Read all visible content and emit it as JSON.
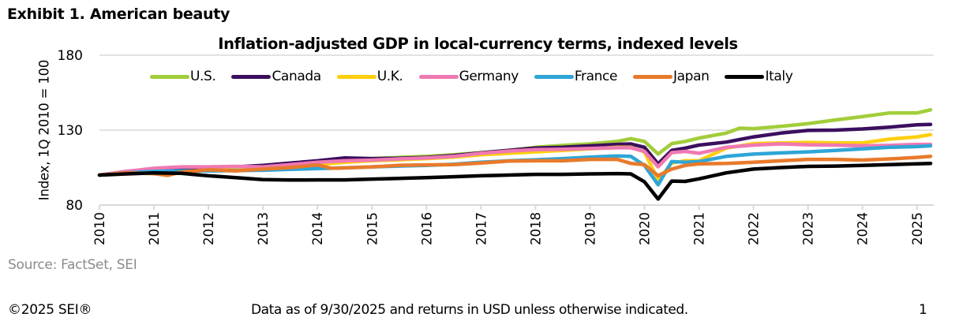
{
  "page": {
    "exhibit_title": "Exhibit 1. American beauty",
    "source": "Source: FactSet, SEI",
    "footer_copyright": "©2025 SEI®",
    "footer_note": "Data as of 9/30/2025 and returns in USD unless otherwise indicated.",
    "page_number": "1"
  },
  "chart_data": {
    "type": "line",
    "title": "Inflation-adjusted GDP in local-currency terms, indexed levels",
    "xlabel": "",
    "ylabel": "Index, 1Q 2010 = 100",
    "ylim": [
      80,
      180
    ],
    "yticks": [
      80,
      130,
      180
    ],
    "xlim": [
      2010,
      2025.4
    ],
    "xticks": [
      "2010",
      "2011",
      "2012",
      "2013",
      "2014",
      "2015",
      "2016",
      "2017",
      "2018",
      "2019",
      "2020",
      "2021",
      "2022",
      "2023",
      "2024",
      "2025"
    ],
    "grid": true,
    "legend_position": "top",
    "series": [
      {
        "name": "U.S.",
        "color": "#a2cd3a",
        "x": [
          2010,
          2010.5,
          2011,
          2011.5,
          2012,
          2012.5,
          2013,
          2013.5,
          2014,
          2014.5,
          2015,
          2015.5,
          2016,
          2016.5,
          2017,
          2017.5,
          2018,
          2018.5,
          2019,
          2019.5,
          2019.75,
          2020,
          2020.25,
          2020.5,
          2020.75,
          2021,
          2021.5,
          2021.75,
          2022,
          2022.5,
          2023,
          2023.5,
          2024,
          2024.5,
          2025,
          2025.25
        ],
        "values": [
          100,
          101.8,
          102.3,
          103.2,
          104.3,
          105.0,
          105.8,
          107.0,
          108.5,
          110.0,
          111.0,
          111.8,
          112.5,
          113.5,
          115.0,
          116.5,
          118.5,
          119.8,
          120.8,
          122.5,
          124.3,
          122.5,
          114.0,
          121.0,
          122.5,
          124.7,
          128.0,
          131.3,
          131.0,
          132.5,
          134.3,
          136.8,
          139.0,
          141.5,
          141.5,
          143.5
        ]
      },
      {
        "name": "Canada",
        "color": "#3b0f5e",
        "x": [
          2010,
          2010.5,
          2011,
          2011.5,
          2012,
          2012.5,
          2013,
          2013.5,
          2014,
          2014.5,
          2015,
          2015.5,
          2016,
          2016.5,
          2017,
          2017.5,
          2018,
          2018.5,
          2019,
          2019.5,
          2019.75,
          2020,
          2020.25,
          2020.5,
          2020.75,
          2021,
          2021.5,
          2022,
          2022.5,
          2023,
          2023.5,
          2024,
          2024.5,
          2025,
          2025.25
        ],
        "values": [
          100,
          102.5,
          103.2,
          104.0,
          104.8,
          105.5,
          106.5,
          108.0,
          109.5,
          111.5,
          111.0,
          111.2,
          111.8,
          113.0,
          114.8,
          116.5,
          118.0,
          118.5,
          119.5,
          120.5,
          120.8,
          118.5,
          107.5,
          116.5,
          118.0,
          120.0,
          122.0,
          125.5,
          128.0,
          129.8,
          130.0,
          130.8,
          132.0,
          133.5,
          133.8
        ]
      },
      {
        "name": "U.K.",
        "color": "#fdcf0d",
        "x": [
          2010,
          2010.5,
          2011,
          2011.5,
          2012,
          2012.5,
          2013,
          2013.5,
          2014,
          2014.5,
          2015,
          2015.5,
          2016,
          2016.5,
          2017,
          2017.5,
          2018,
          2018.5,
          2019,
          2019.5,
          2019.75,
          2020,
          2020.25,
          2020.5,
          2020.75,
          2021,
          2021.5,
          2022,
          2022.5,
          2023,
          2023.5,
          2024,
          2024.5,
          2025,
          2025.25
        ],
        "values": [
          100,
          101.5,
          102.0,
          102.5,
          103.0,
          103.5,
          104.5,
          105.5,
          107.0,
          108.5,
          109.5,
          110.2,
          111.0,
          112.0,
          113.5,
          114.5,
          115.5,
          116.5,
          117.5,
          118.5,
          118.5,
          115.5,
          96.5,
          108.0,
          109.5,
          109.5,
          118.0,
          121.0,
          121.5,
          121.8,
          121.5,
          121.5,
          124.0,
          125.5,
          127.0
        ]
      },
      {
        "name": "Germany",
        "color": "#ef79b3",
        "x": [
          2010,
          2010.5,
          2011,
          2011.5,
          2012,
          2012.5,
          2013,
          2013.5,
          2014,
          2014.5,
          2015,
          2015.5,
          2016,
          2016.5,
          2017,
          2017.5,
          2018,
          2018.5,
          2019,
          2019.5,
          2019.75,
          2020,
          2020.25,
          2020.5,
          2020.75,
          2021,
          2021.5,
          2022,
          2022.5,
          2023,
          2023.5,
          2024,
          2024.5,
          2025,
          2025.25
        ],
        "values": [
          100,
          102.5,
          104.5,
          105.5,
          105.5,
          105.8,
          105.5,
          107.0,
          108.5,
          109.5,
          110.0,
          110.8,
          111.5,
          112.5,
          114.5,
          116.0,
          117.0,
          117.2,
          117.8,
          118.2,
          118.2,
          115.8,
          105.5,
          115.0,
          115.8,
          114.5,
          118.5,
          120.0,
          120.8,
          120.2,
          120.0,
          119.5,
          119.8,
          120.5,
          120.5
        ]
      },
      {
        "name": "France",
        "color": "#2fa5d7",
        "x": [
          2010,
          2010.5,
          2011,
          2011.5,
          2012,
          2012.5,
          2013,
          2013.5,
          2014,
          2014.5,
          2015,
          2015.5,
          2016,
          2016.5,
          2017,
          2017.5,
          2018,
          2018.5,
          2019,
          2019.5,
          2019.75,
          2020,
          2020.25,
          2020.5,
          2020.75,
          2021,
          2021.5,
          2022,
          2022.5,
          2023,
          2023.5,
          2024,
          2024.5,
          2025,
          2025.25
        ],
        "values": [
          100,
          101.5,
          102.5,
          102.8,
          102.8,
          103.0,
          103.2,
          103.8,
          104.3,
          104.8,
          105.5,
          106.0,
          106.5,
          107.2,
          108.5,
          109.5,
          110.2,
          111.0,
          112.0,
          112.8,
          112.5,
          106.5,
          93.5,
          109.0,
          108.5,
          109.0,
          112.5,
          114.0,
          114.8,
          115.5,
          116.5,
          117.5,
          118.5,
          119.0,
          119.5
        ]
      },
      {
        "name": "Japan",
        "color": "#e87a2b",
        "x": [
          2010,
          2010.5,
          2011,
          2011.25,
          2011.5,
          2012,
          2012.5,
          2013,
          2013.5,
          2014,
          2014.25,
          2014.5,
          2015,
          2015.5,
          2016,
          2016.5,
          2017,
          2017.5,
          2018,
          2018.5,
          2019,
          2019.5,
          2019.75,
          2020,
          2020.25,
          2020.5,
          2020.75,
          2021,
          2021.5,
          2022,
          2022.5,
          2023,
          2023.5,
          2024,
          2024.5,
          2025,
          2025.25
        ],
        "values": [
          100,
          101.5,
          101.0,
          99.8,
          102.0,
          103.5,
          102.8,
          104.0,
          105.0,
          106.8,
          104.5,
          104.8,
          105.5,
          106.5,
          106.8,
          107.0,
          108.0,
          109.3,
          109.5,
          109.5,
          110.5,
          110.5,
          107.8,
          107.0,
          99.5,
          104.0,
          106.5,
          107.5,
          107.8,
          108.5,
          109.5,
          110.5,
          110.5,
          110.0,
          110.8,
          111.8,
          112.5
        ]
      },
      {
        "name": "Italy",
        "color": "#000000",
        "x": [
          2010,
          2010.5,
          2011,
          2011.5,
          2012,
          2012.5,
          2013,
          2013.5,
          2014,
          2014.5,
          2015,
          2015.5,
          2016,
          2016.5,
          2017,
          2017.5,
          2018,
          2018.5,
          2019,
          2019.5,
          2019.75,
          2020,
          2020.25,
          2020.5,
          2020.75,
          2021,
          2021.5,
          2022,
          2022.5,
          2023,
          2023.5,
          2024,
          2024.5,
          2025,
          2025.25
        ],
        "values": [
          100,
          100.8,
          101.5,
          101.2,
          99.5,
          98.3,
          97.0,
          96.7,
          96.8,
          96.8,
          97.3,
          97.8,
          98.3,
          98.9,
          99.5,
          100.0,
          100.5,
          100.5,
          100.8,
          101.0,
          100.8,
          95.5,
          84.0,
          96.0,
          95.8,
          97.5,
          101.5,
          104.0,
          105.0,
          105.8,
          106.0,
          106.5,
          107.0,
          107.5,
          107.8
        ]
      }
    ]
  }
}
